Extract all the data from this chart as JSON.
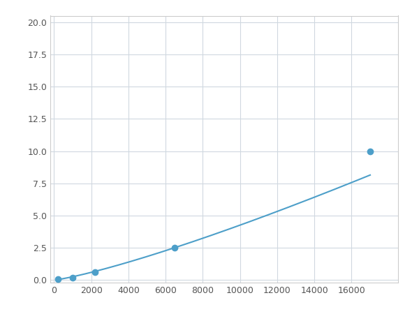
{
  "x_points": [
    200,
    500,
    1000,
    2200,
    6500,
    17000
  ],
  "y_points": [
    0.05,
    0.1,
    0.18,
    0.6,
    2.5,
    10.0
  ],
  "marker_x": [
    200,
    1000,
    2200,
    6500,
    17000
  ],
  "marker_y": [
    0.05,
    0.18,
    0.6,
    2.5,
    10.0
  ],
  "line_color": "#4d9fc9",
  "marker_color": "#4d9fc9",
  "marker_size": 6,
  "xlim": [
    -200,
    18500
  ],
  "ylim": [
    -0.2,
    20.5
  ],
  "xticks": [
    0,
    2000,
    4000,
    6000,
    8000,
    10000,
    12000,
    14000,
    16000
  ],
  "yticks": [
    0.0,
    2.5,
    5.0,
    7.5,
    10.0,
    12.5,
    15.0,
    17.5,
    20.0
  ],
  "grid_color": "#d0d8e0",
  "background_color": "#ffffff",
  "spine_color": "#cccccc",
  "figsize": [
    6.0,
    4.5
  ],
  "dpi": 100
}
